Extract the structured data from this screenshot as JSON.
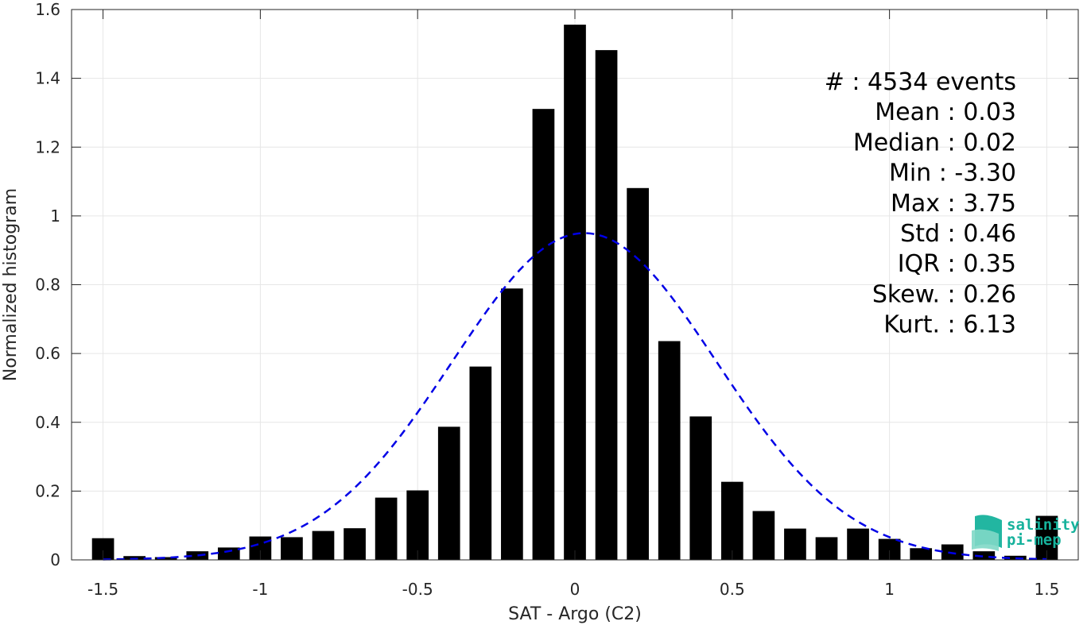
{
  "chart_data": {
    "type": "bar",
    "xlabel": "SAT - Argo (C2)",
    "ylabel": "Normalized histogram",
    "xlim": [
      -1.6,
      1.6
    ],
    "ylim": [
      0,
      1.6
    ],
    "xticks": [
      -1.5,
      -1,
      -0.5,
      0,
      0.5,
      1,
      1.5
    ],
    "xtick_labels": [
      "-1.5",
      "-1",
      "-0.5",
      "0",
      "0.5",
      "1",
      "1.5"
    ],
    "yticks": [
      0,
      0.2,
      0.4,
      0.6,
      0.8,
      1,
      1.2,
      1.4,
      1.6
    ],
    "ytick_labels": [
      "0",
      "0.2",
      "0.4",
      "0.6",
      "0.8",
      "1",
      "1.2",
      "1.4",
      "1.6"
    ],
    "grid": true,
    "bar_width": 0.07,
    "bar_color": "#000000",
    "bins": [
      {
        "x": -1.5,
        "y": 0.063
      },
      {
        "x": -1.4,
        "y": 0.011
      },
      {
        "x": -1.3,
        "y": 0.008
      },
      {
        "x": -1.2,
        "y": 0.025
      },
      {
        "x": -1.1,
        "y": 0.036
      },
      {
        "x": -1.0,
        "y": 0.068
      },
      {
        "x": -0.9,
        "y": 0.066
      },
      {
        "x": -0.8,
        "y": 0.084
      },
      {
        "x": -0.7,
        "y": 0.092
      },
      {
        "x": -0.6,
        "y": 0.181
      },
      {
        "x": -0.5,
        "y": 0.202
      },
      {
        "x": -0.4,
        "y": 0.387
      },
      {
        "x": -0.3,
        "y": 0.562
      },
      {
        "x": -0.2,
        "y": 0.789
      },
      {
        "x": -0.1,
        "y": 1.311
      },
      {
        "x": 0.0,
        "y": 1.556
      },
      {
        "x": 0.1,
        "y": 1.482
      },
      {
        "x": 0.2,
        "y": 1.081
      },
      {
        "x": 0.3,
        "y": 0.636
      },
      {
        "x": 0.4,
        "y": 0.417
      },
      {
        "x": 0.5,
        "y": 0.227
      },
      {
        "x": 0.6,
        "y": 0.142
      },
      {
        "x": 0.7,
        "y": 0.091
      },
      {
        "x": 0.8,
        "y": 0.066
      },
      {
        "x": 0.9,
        "y": 0.091
      },
      {
        "x": 1.0,
        "y": 0.061
      },
      {
        "x": 1.1,
        "y": 0.034
      },
      {
        "x": 1.2,
        "y": 0.045
      },
      {
        "x": 1.3,
        "y": 0.025
      },
      {
        "x": 1.4,
        "y": 0.012
      },
      {
        "x": 1.5,
        "y": 0.128
      }
    ],
    "fit_curve": {
      "style": "dashed",
      "color": "#0000e6",
      "mean": 0.03,
      "std": 0.42,
      "peak": 0.95,
      "x_range": [
        -1.5,
        1.5
      ]
    },
    "stats": [
      "#  : 4534 events",
      "Mean : 0.03",
      "Median : 0.02",
      "Min : -3.30",
      "Max : 3.75",
      "Std : 0.46",
      "IQR : 0.35",
      "Skew. : 0.26",
      "Kurt. : 6.13"
    ]
  },
  "logo": {
    "line1": "salinity",
    "line2": "pi-mep",
    "color": "#16b29c"
  }
}
